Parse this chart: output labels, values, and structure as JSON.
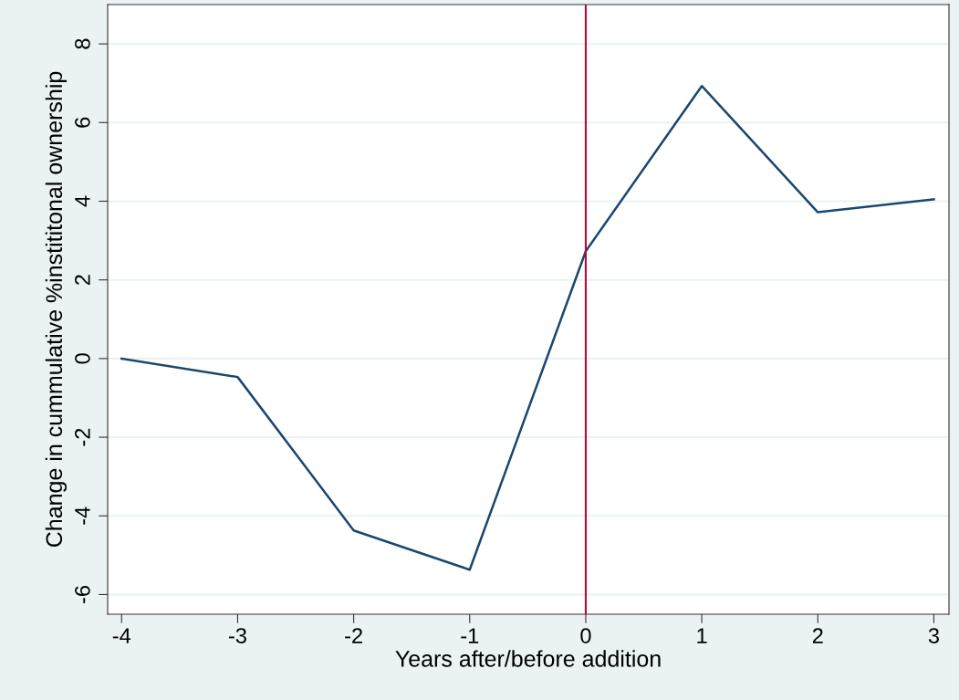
{
  "chart_data": {
    "type": "line",
    "xlabel": "Years after/before addition",
    "ylabel": "Change in cummulative %instititonal ownership",
    "x": [
      -4,
      -3,
      -2,
      -1,
      0,
      1,
      2,
      3
    ],
    "series": [
      {
        "color": "#1a476f",
        "values": [
          0,
          -0.47,
          -4.37,
          -5.37,
          2.73,
          6.93,
          3.72,
          4.05
        ]
      }
    ],
    "xlim": [
      -4.12,
      3.13
    ],
    "ylim": [
      -6.5,
      9
    ],
    "xticks": [
      -4,
      -3,
      -2,
      -1,
      0,
      1,
      2,
      3
    ],
    "yticks": [
      -6,
      -4,
      -2,
      0,
      2,
      4,
      6,
      8
    ],
    "ref_lines": [
      {
        "axis": "x",
        "value": 0,
        "color": "#c10534"
      }
    ],
    "grid": "y",
    "legend": false,
    "marker": "none",
    "line_style": "solid"
  }
}
